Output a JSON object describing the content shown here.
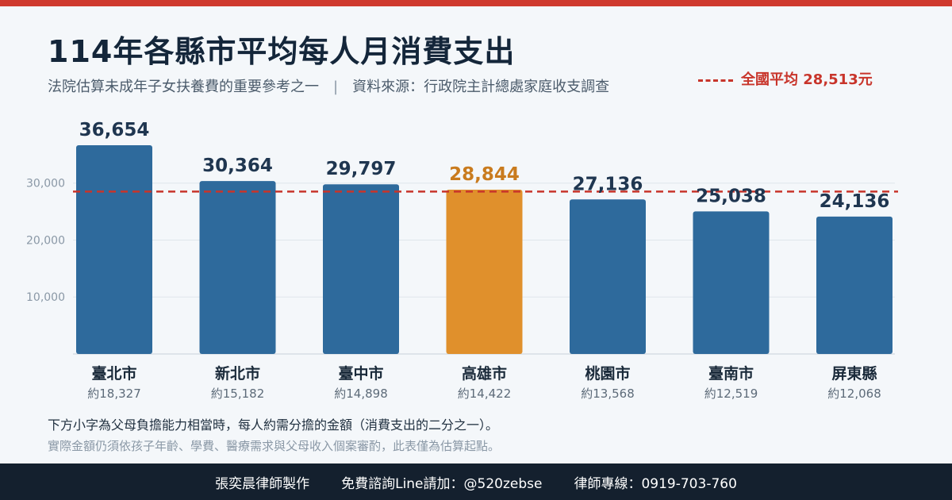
{
  "header": {
    "title": "114年各縣市平均每人月消費支出",
    "subtitle_left": "法院估算未成年子女扶養費的重要參考之一",
    "subtitle_sep": "|",
    "subtitle_right": "資料來源：行政院主計總處家庭收支調查",
    "avg_label": "全國平均 28,513元"
  },
  "chart_data": {
    "type": "bar",
    "title": "114年各縣市平均每人月消費支出",
    "categories": [
      "臺北市",
      "新北市",
      "臺中市",
      "高雄市",
      "桃園市",
      "臺南市",
      "屏東縣"
    ],
    "values": [
      36654,
      30364,
      29797,
      28844,
      27136,
      25038,
      24136
    ],
    "value_labels": [
      "36,654",
      "30,364",
      "29,797",
      "28,844",
      "27,136",
      "25,038",
      "24,136"
    ],
    "sub_labels": [
      "約18,327",
      "約15,182",
      "約14,898",
      "約14,422",
      "約13,568",
      "約12,519",
      "約12,068"
    ],
    "highlight_index": 3,
    "reference_line": {
      "value": 28513
    },
    "yticks": [
      10000,
      20000,
      30000
    ],
    "ytick_labels": [
      "10,000",
      "20,000",
      "30,000"
    ],
    "ylim": [
      0,
      36654
    ],
    "xlabel": "",
    "ylabel": "",
    "grid": true,
    "colors": {
      "bar": "#2e6a9c",
      "highlight": "#e0902c",
      "reference": "#c8352b",
      "label": "#1f3650",
      "highlight_label": "#c97b1e"
    }
  },
  "notes": {
    "line1": "下方小字為父母負擔能力相當時，每人約需分擔的金額（消費支出的二分之一）。",
    "line2": "實際金額仍須依孩子年齡、學費、醫療需求與父母收入個案審酌，此表僅為估算起點。"
  },
  "footer": {
    "maker": "張奕晨律師製作",
    "consult": "免費諮詢Line請加：@520zebse",
    "phone": "律師專線：0919-703-760"
  }
}
